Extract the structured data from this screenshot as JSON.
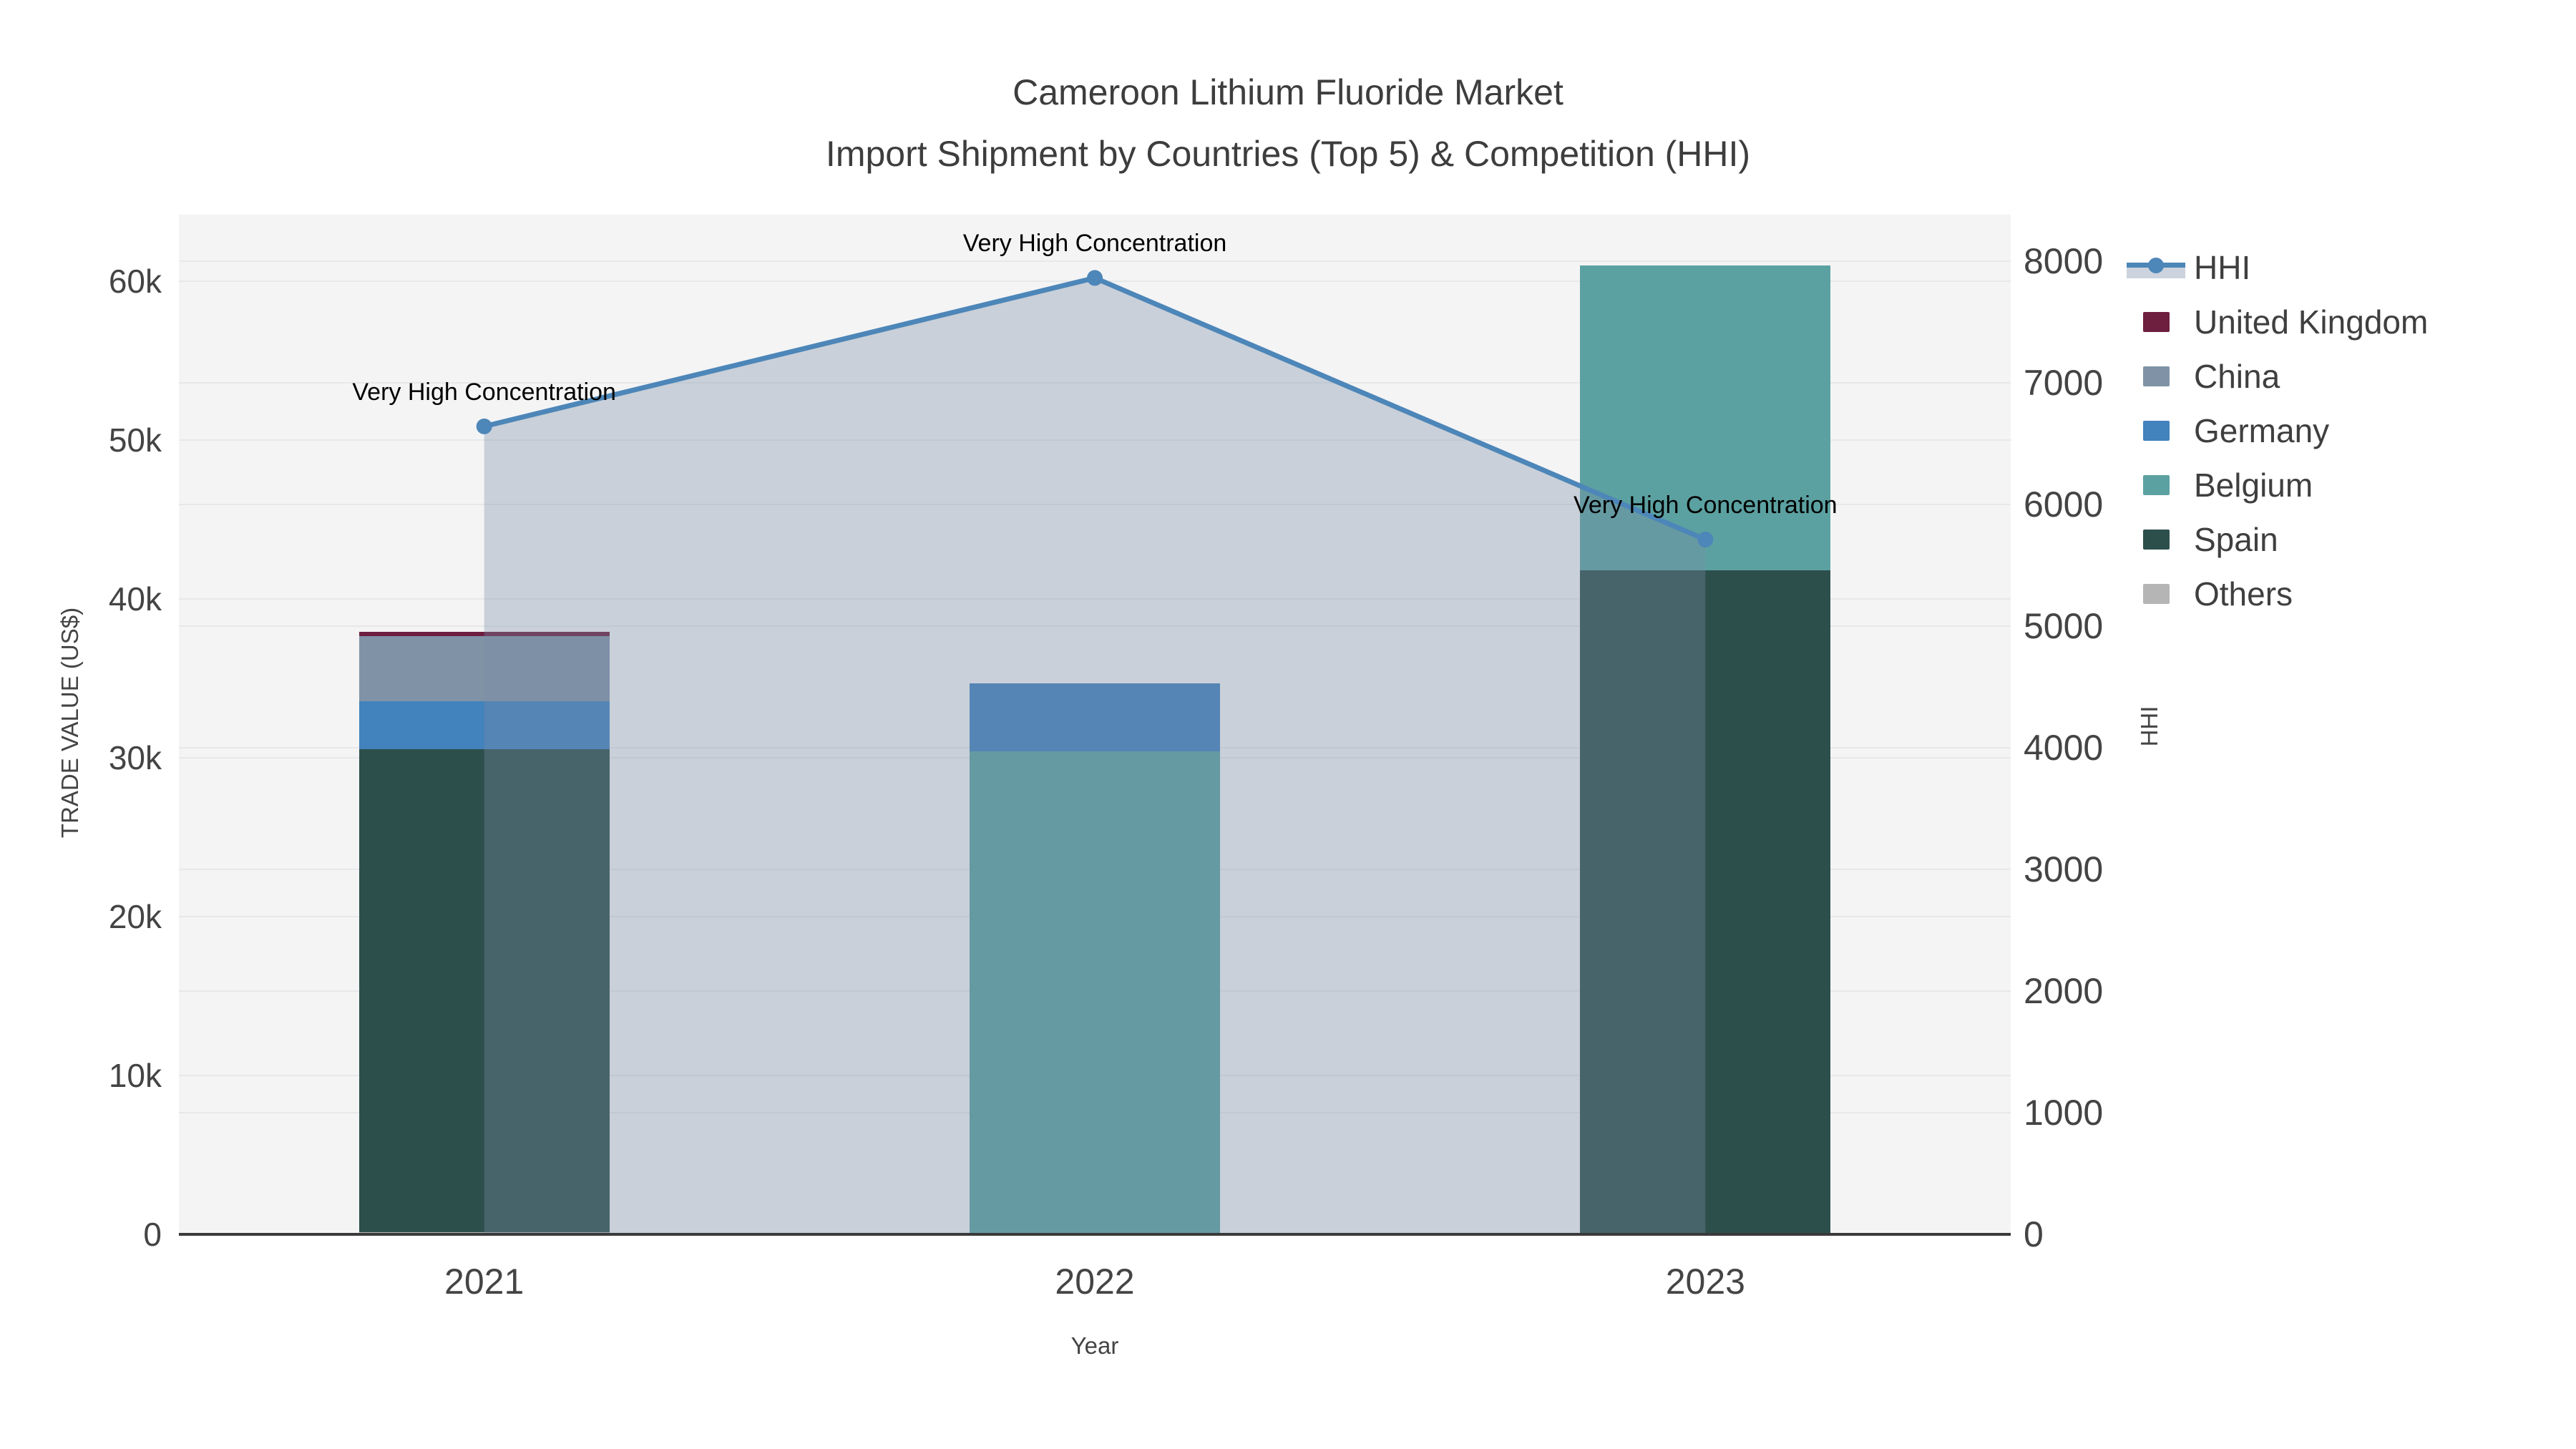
{
  "title": {
    "line1": "Cameroon Lithium Fluoride Market",
    "line2": "Import Shipment by Countries (Top 5) & Competition (HHI)"
  },
  "axes": {
    "x": {
      "title": "Year",
      "categories": [
        "2021",
        "2022",
        "2023"
      ]
    },
    "y_left": {
      "title": "TRADE VALUE (US$)",
      "ticks": [
        {
          "label": "0",
          "value": 0
        },
        {
          "label": "10k",
          "value": 10000
        },
        {
          "label": "20k",
          "value": 20000
        },
        {
          "label": "30k",
          "value": 30000
        },
        {
          "label": "40k",
          "value": 40000
        },
        {
          "label": "50k",
          "value": 50000
        },
        {
          "label": "60k",
          "value": 60000
        }
      ]
    },
    "y_right": {
      "title": "HHI",
      "ticks": [
        {
          "label": "0",
          "value": 0
        },
        {
          "label": "1000",
          "value": 1000
        },
        {
          "label": "2000",
          "value": 2000
        },
        {
          "label": "3000",
          "value": 3000
        },
        {
          "label": "4000",
          "value": 4000
        },
        {
          "label": "5000",
          "value": 5000
        },
        {
          "label": "6000",
          "value": 6000
        },
        {
          "label": "7000",
          "value": 7000
        },
        {
          "label": "8000",
          "value": 8000
        }
      ]
    }
  },
  "legend": {
    "items": [
      {
        "label": "HHI",
        "type": "line",
        "line_color": "#4d86b8",
        "fill_color": "#ccd3de"
      },
      {
        "label": "United Kingdom",
        "type": "swatch",
        "color": "#6e1e3f"
      },
      {
        "label": "China",
        "type": "swatch",
        "color": "#8093a6"
      },
      {
        "label": "Germany",
        "type": "swatch",
        "color": "#4282bd"
      },
      {
        "label": "Belgium",
        "type": "swatch",
        "color": "#5ca1a1"
      },
      {
        "label": "Spain",
        "type": "swatch",
        "color": "#2d4f4b"
      },
      {
        "label": "Others",
        "type": "swatch",
        "color": "#b5b5b5"
      }
    ]
  },
  "colors": {
    "plot_background": "#f4f4f5",
    "gridline": "#e7e8ea",
    "axis_line": "#3a3a3a",
    "tick_text": "#444444",
    "title_text": "#3d3d3d",
    "annotation_text": "#000000"
  },
  "chart_data": {
    "type": "bar",
    "stacked": true,
    "title": [
      "Cameroon Lithium Fluoride Market",
      "Import Shipment by Countries (Top 5) & Competition (HHI)"
    ],
    "xlabel": "Year",
    "ylabel": "TRADE VALUE (US$)",
    "ylabel_right": "HHI",
    "categories": [
      "2021",
      "2022",
      "2023"
    ],
    "series": [
      {
        "name": "United Kingdom",
        "color": "#6e1e3f",
        "values": [
          300,
          0,
          0
        ]
      },
      {
        "name": "China",
        "color": "#8093a6",
        "values": [
          4100,
          0,
          0
        ]
      },
      {
        "name": "Germany",
        "color": "#4282bd",
        "values": [
          3000,
          4300,
          0
        ]
      },
      {
        "name": "Belgium",
        "color": "#5ca1a1",
        "values": [
          0,
          30400,
          19200
        ]
      },
      {
        "name": "Spain",
        "color": "#2d4f4b",
        "values": [
          30400,
          0,
          41800
        ]
      },
      {
        "name": "Others",
        "color": "#b5b5b5",
        "values": [
          150,
          0,
          0
        ]
      }
    ],
    "stack_order_bottom_to_top": [
      "Others",
      "Spain",
      "Belgium",
      "Germany",
      "China",
      "United Kingdom"
    ],
    "line_series": {
      "name": "HHI",
      "axis": "right",
      "color": "#4d86b8",
      "fill": "rgba(120,140,165,0.35)",
      "values": [
        6640,
        7860,
        5710
      ]
    },
    "annotations": [
      {
        "text": "Very High Concentration",
        "point": 0
      },
      {
        "text": "Very High Concentration",
        "point": 1
      },
      {
        "text": "Very High Concentration",
        "point": 2
      }
    ],
    "ylim_left": [
      0,
      64200
    ],
    "ylim_right": [
      0,
      8380
    ],
    "grid": true,
    "legend_position": "top-right-outside"
  }
}
